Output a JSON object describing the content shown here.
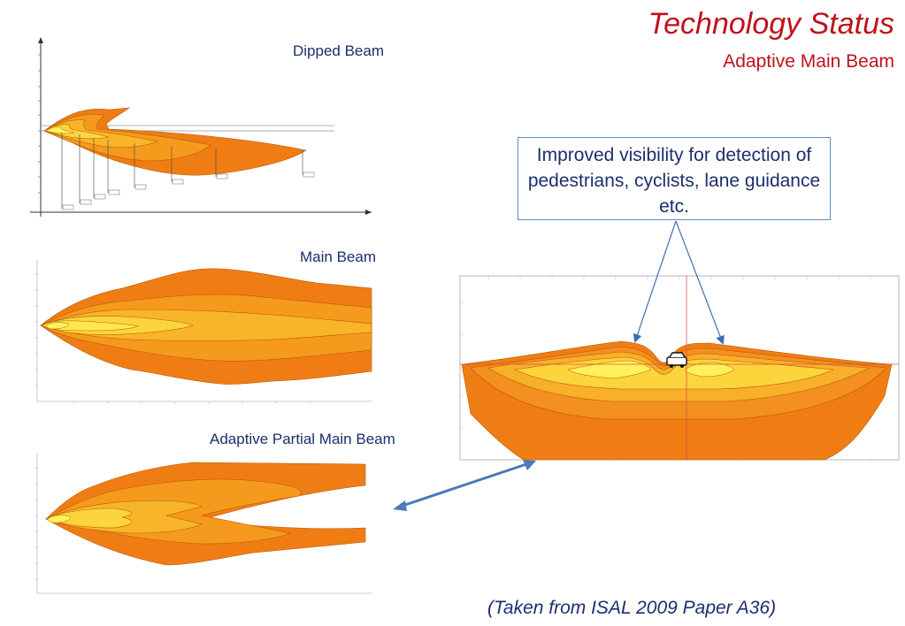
{
  "header": {
    "title": "Technology Status",
    "subtitle": "Adaptive Main Beam"
  },
  "panels": {
    "dipped_beam_label": "Dipped Beam",
    "main_beam_label": "Main Beam",
    "adaptive_partial_label": "Adaptive Partial Main Beam"
  },
  "callout": {
    "text": "Improved visibility for detection of pedestrians, cyclists, lane guidance etc."
  },
  "footnote": "(Taken from ISAL 2009 Paper A36)",
  "colors": {
    "title": "#c0121b",
    "text": "#1b2f6b",
    "callout_border": "#5b8cc6",
    "beam_outer": "#f07d14",
    "beam_mid": "#f5a623",
    "beam_inner": "#fbd03a",
    "beam_core": "#fff25a"
  }
}
